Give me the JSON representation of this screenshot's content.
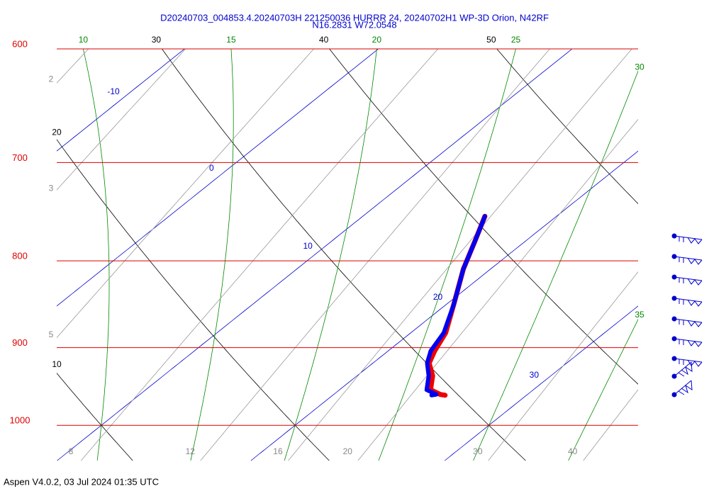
{
  "chart_data": {
    "type": "skew-t",
    "title": "D20240703_004853.4.20240703H 221250036 HURRR 24, 20240702H1 WP-3D Orion, N42RF",
    "subtitle": "N16.2831 W72.0548",
    "log_y": true,
    "ylim": [
      1049,
      600
    ],
    "yticks": [
      600,
      700,
      800,
      900,
      1000
    ],
    "xlim": [
      7.7,
      37.7
    ],
    "isotherms": [
      -10,
      0,
      10,
      20,
      30
    ],
    "dry_adiabats": [
      10,
      20,
      30,
      40,
      50
    ],
    "moist_adiabats": [
      10,
      15,
      20,
      25,
      30,
      35
    ],
    "mixing_ratios": [
      2,
      3,
      5,
      8,
      12,
      16,
      20,
      30,
      40
    ],
    "pressure": [
      753,
      779,
      809,
      849,
      882,
      904,
      919,
      935,
      953,
      959,
      960
    ],
    "series": [
      {
        "color": "#ee0000",
        "values": [
          16.3,
          17.4,
          18.6,
          20.4,
          21.8,
          22.4,
          22.9,
          23.9,
          24.7,
          25.5,
          25.8
        ]
      },
      {
        "color": "#0000ee",
        "values": [
          16.3,
          17.4,
          18.6,
          20.4,
          21.7,
          22.2,
          22.8,
          23.7,
          24.5,
          25.3,
          25.1
        ]
      }
    ]
  },
  "footer": "Aspen V4.0.2, 03 Jul 2024  01:35 UTC"
}
